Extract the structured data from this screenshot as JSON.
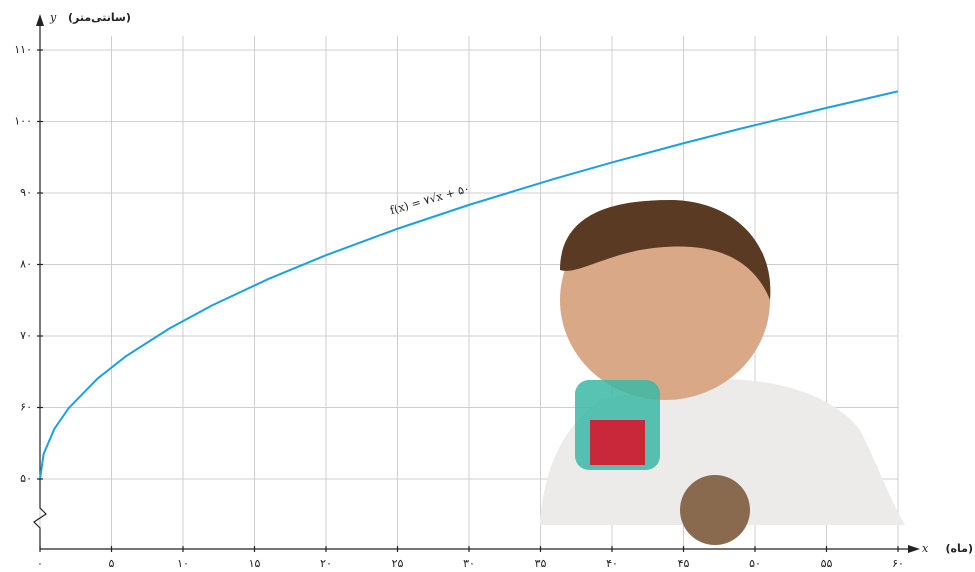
{
  "chart_data": {
    "type": "line",
    "x_label": "x",
    "x_unit": "(ماه)",
    "y_label": "y",
    "y_unit": "(سانتی‌متر)",
    "annotation": "f(x) = ۷√x + ۵۰",
    "color": "#1ba1e2",
    "x": [
      0,
      0.25,
      1,
      2,
      4,
      6,
      9,
      12,
      16,
      20,
      25,
      30,
      36,
      40,
      45,
      49,
      55,
      60
    ],
    "values": [
      50,
      53.5,
      57,
      59.9,
      64,
      67.15,
      71,
      74.25,
      78,
      81.3,
      85,
      88.34,
      92,
      94.27,
      96.96,
      99,
      101.91,
      104.22
    ],
    "xlim": [
      0,
      60
    ],
    "xticks": [
      {
        "value": 0,
        "label": "۰"
      },
      {
        "value": 5,
        "label": "۵"
      },
      {
        "value": 10,
        "label": "۱۰"
      },
      {
        "value": 15,
        "label": "۱۵"
      },
      {
        "value": 20,
        "label": "۲۰"
      },
      {
        "value": 25,
        "label": "۲۵"
      },
      {
        "value": 30,
        "label": "۳۰"
      },
      {
        "value": 35,
        "label": "۳۵"
      },
      {
        "value": 40,
        "label": "۴۰"
      },
      {
        "value": 45,
        "label": "۴۵"
      },
      {
        "value": 50,
        "label": "۵۰"
      },
      {
        "value": 55,
        "label": "۵۵"
      },
      {
        "value": 60,
        "label": "۶۰"
      }
    ],
    "ylim": [
      50,
      110
    ],
    "yticks": [
      {
        "value": 50,
        "label": "۵۰"
      },
      {
        "value": 60,
        "label": "۶۰"
      },
      {
        "value": 70,
        "label": "۷۰"
      },
      {
        "value": 80,
        "label": "۸۰"
      },
      {
        "value": 90,
        "label": "۹۰"
      },
      {
        "value": 100,
        "label": "۱۰۰"
      },
      {
        "value": 110,
        "label": "۱۱۰"
      }
    ],
    "grid": true
  }
}
